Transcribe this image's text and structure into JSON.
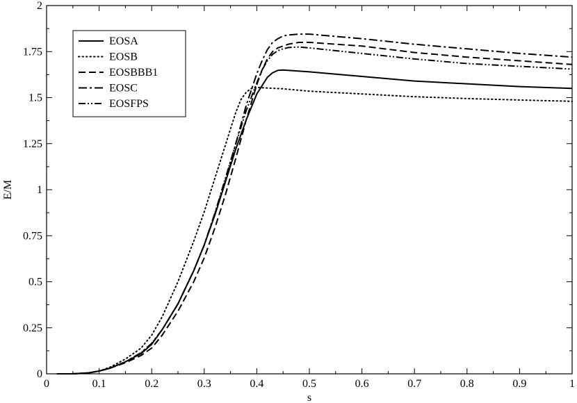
{
  "chart_data": {
    "type": "line",
    "xlabel": "s",
    "ylabel": "E/M",
    "xlim": [
      0,
      1
    ],
    "ylim": [
      0,
      2
    ],
    "grid": false,
    "legend_position": "top-left",
    "xticks": [
      "0",
      "0.1",
      "0.2",
      "0.3",
      "0.4",
      "0.5",
      "0.6",
      "0.7",
      "0.8",
      "0.9",
      "1"
    ],
    "yticks": [
      "0",
      "0.25",
      "0.5",
      "0.75",
      "1",
      "1.25",
      "1.5",
      "1.75",
      "2"
    ],
    "series": [
      {
        "name": "EOSA",
        "dash": "solid",
        "x": [
          0.02,
          0.05,
          0.08,
          0.1,
          0.12,
          0.15,
          0.18,
          0.2,
          0.22,
          0.25,
          0.28,
          0.3,
          0.32,
          0.34,
          0.36,
          0.38,
          0.4,
          0.42,
          0.43,
          0.44,
          0.45,
          0.5,
          0.6,
          0.7,
          0.8,
          0.9,
          1.0
        ],
        "y": [
          0.0,
          0.0,
          0.005,
          0.015,
          0.03,
          0.065,
          0.11,
          0.16,
          0.24,
          0.38,
          0.56,
          0.7,
          0.86,
          1.04,
          1.22,
          1.38,
          1.52,
          1.61,
          1.635,
          1.648,
          1.65,
          1.64,
          1.615,
          1.59,
          1.575,
          1.56,
          1.55
        ]
      },
      {
        "name": "EOSB",
        "dash": "dotted",
        "x": [
          0.02,
          0.05,
          0.08,
          0.1,
          0.12,
          0.15,
          0.18,
          0.2,
          0.22,
          0.25,
          0.28,
          0.3,
          0.32,
          0.34,
          0.36,
          0.37,
          0.38,
          0.39,
          0.4,
          0.45,
          0.5,
          0.6,
          0.7,
          0.8,
          0.9,
          1.0
        ],
        "y": [
          0.0,
          0.0,
          0.005,
          0.015,
          0.035,
          0.08,
          0.14,
          0.21,
          0.31,
          0.5,
          0.72,
          0.88,
          1.06,
          1.24,
          1.42,
          1.49,
          1.53,
          1.55,
          1.555,
          1.548,
          1.535,
          1.52,
          1.505,
          1.495,
          1.487,
          1.48
        ]
      },
      {
        "name": "EOSBBB1",
        "dash": "dashed",
        "x": [
          0.02,
          0.05,
          0.08,
          0.1,
          0.12,
          0.15,
          0.18,
          0.2,
          0.22,
          0.25,
          0.28,
          0.3,
          0.32,
          0.34,
          0.36,
          0.38,
          0.4,
          0.41,
          0.42,
          0.43,
          0.44,
          0.45,
          0.46,
          0.48,
          0.5,
          0.6,
          0.7,
          0.8,
          0.9,
          1.0
        ],
        "y": [
          0.0,
          0.0,
          0.005,
          0.015,
          0.03,
          0.06,
          0.1,
          0.14,
          0.21,
          0.34,
          0.5,
          0.63,
          0.79,
          0.97,
          1.17,
          1.38,
          1.57,
          1.65,
          1.71,
          1.75,
          1.77,
          1.78,
          1.79,
          1.8,
          1.8,
          1.78,
          1.745,
          1.72,
          1.7,
          1.68
        ]
      },
      {
        "name": "EOSC",
        "dash": "dashdot",
        "x": [
          0.02,
          0.05,
          0.08,
          0.1,
          0.12,
          0.15,
          0.18,
          0.2,
          0.22,
          0.25,
          0.28,
          0.3,
          0.32,
          0.34,
          0.36,
          0.38,
          0.4,
          0.41,
          0.42,
          0.43,
          0.44,
          0.45,
          0.46,
          0.48,
          0.5,
          0.52,
          0.6,
          0.7,
          0.8,
          0.9,
          1.0
        ],
        "y": [
          0.0,
          0.0,
          0.005,
          0.015,
          0.03,
          0.065,
          0.115,
          0.165,
          0.24,
          0.38,
          0.56,
          0.7,
          0.87,
          1.05,
          1.25,
          1.46,
          1.63,
          1.7,
          1.76,
          1.8,
          1.82,
          1.835,
          1.84,
          1.845,
          1.845,
          1.84,
          1.82,
          1.79,
          1.765,
          1.74,
          1.72
        ]
      },
      {
        "name": "EOSFPS",
        "dash": "dashdotdot",
        "x": [
          0.02,
          0.05,
          0.08,
          0.1,
          0.12,
          0.15,
          0.18,
          0.2,
          0.22,
          0.25,
          0.28,
          0.3,
          0.32,
          0.34,
          0.36,
          0.38,
          0.4,
          0.41,
          0.42,
          0.43,
          0.44,
          0.45,
          0.46,
          0.48,
          0.5,
          0.6,
          0.7,
          0.8,
          0.9,
          1.0
        ],
        "y": [
          0.0,
          0.0,
          0.005,
          0.015,
          0.03,
          0.065,
          0.115,
          0.165,
          0.24,
          0.38,
          0.56,
          0.7,
          0.87,
          1.06,
          1.25,
          1.43,
          1.58,
          1.65,
          1.7,
          1.735,
          1.755,
          1.765,
          1.772,
          1.775,
          1.77,
          1.74,
          1.71,
          1.685,
          1.67,
          1.655
        ]
      }
    ]
  }
}
